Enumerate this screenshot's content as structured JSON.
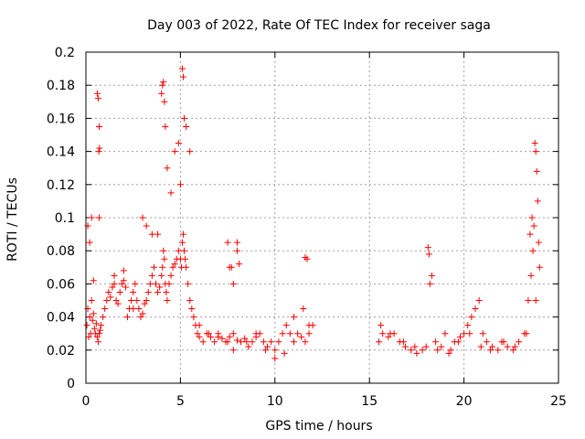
{
  "chart_data": {
    "type": "scatter",
    "title": "Day 003 of 2022, Rate Of TEC Index for receiver saga",
    "xlabel": "GPS time / hours",
    "ylabel": "ROTI / TECUs",
    "xlim": [
      0,
      25
    ],
    "ylim": [
      0,
      0.2
    ],
    "xticks": [
      0,
      5,
      10,
      15,
      20,
      25
    ],
    "xtick_labels": [
      "0",
      "5",
      "10",
      "15",
      "20",
      "25"
    ],
    "yticks": [
      0,
      0.02,
      0.04,
      0.06,
      0.08,
      0.1,
      0.12,
      0.14,
      0.16,
      0.18,
      0.2
    ],
    "ytick_labels": [
      "0",
      "0.02",
      "0.04",
      "0.06",
      "0.08",
      "0.1",
      "0.12",
      "0.14",
      "0.16",
      "0.18",
      "0.2"
    ],
    "grid": true,
    "marker": "+",
    "color": "#ff0000",
    "series": [
      {
        "name": "ROTI",
        "x": [
          0.05,
          0.1,
          0.15,
          0.2,
          0.25,
          0.3,
          0.35,
          0.4,
          0.45,
          0.5,
          0.55,
          0.6,
          0.65,
          0.7,
          0.75,
          0.8,
          0.9,
          1.0,
          1.1,
          1.2,
          1.3,
          1.4,
          1.5,
          1.6,
          1.7,
          1.8,
          1.9,
          2.0,
          2.1,
          2.2,
          2.3,
          2.4,
          2.5,
          2.6,
          2.7,
          2.8,
          2.9,
          3.0,
          3.1,
          3.2,
          3.3,
          3.4,
          3.5,
          3.6,
          3.7,
          3.8,
          3.9,
          4.0,
          4.05,
          4.1,
          4.15,
          4.2,
          4.25,
          4.3,
          4.4,
          4.5,
          4.6,
          4.7,
          4.8,
          4.9,
          5.0,
          5.05,
          5.1,
          5.15,
          5.2,
          5.25,
          5.3,
          5.4,
          5.5,
          5.6,
          5.7,
          5.8,
          5.9,
          6.0,
          6.2,
          6.4,
          6.6,
          6.8,
          7.0,
          7.2,
          7.4,
          7.6,
          7.8,
          8.0,
          8.2,
          8.4,
          8.6,
          8.8,
          9.0,
          9.2,
          9.4,
          9.6,
          9.8,
          10.0,
          10.2,
          10.4,
          10.6,
          10.8,
          11.0,
          11.2,
          11.4,
          11.6,
          11.8,
          12.0,
          0.1,
          0.2,
          0.3,
          0.4,
          0.6,
          0.65,
          0.7,
          0.68,
          0.72,
          0.7,
          1.5,
          2.0,
          2.5,
          3.0,
          3.2,
          3.5,
          3.8,
          4.0,
          4.05,
          4.1,
          4.15,
          4.2,
          4.3,
          4.5,
          4.7,
          4.9,
          5.0,
          5.1,
          5.15,
          5.2,
          5.3,
          5.5,
          6.0,
          6.5,
          7.0,
          7.5,
          7.8,
          8.0,
          8.5,
          9.0,
          9.5,
          10.0,
          10.5,
          11.0,
          11.5,
          11.8,
          15.5,
          15.7,
          16.0,
          16.3,
          16.6,
          16.9,
          17.2,
          17.5,
          17.8,
          18.0,
          18.1,
          18.15,
          18.2,
          18.3,
          18.5,
          18.8,
          19.0,
          19.3,
          19.5,
          19.8,
          20.0,
          20.2,
          20.4,
          20.6,
          20.8,
          21.0,
          21.2,
          21.5,
          21.8,
          22.0,
          22.3,
          22.6,
          22.9,
          23.2,
          23.4,
          23.5,
          23.6,
          23.7,
          23.75,
          23.8,
          23.85,
          23.9,
          23.95,
          24.0,
          15.6,
          16.1,
          16.8,
          17.4,
          18.6,
          19.2,
          19.7,
          20.3,
          20.9,
          21.4,
          22.1,
          22.7,
          23.3,
          23.55,
          23.65,
          23.8,
          7.5,
          7.6,
          7.7,
          7.8,
          8.0,
          8.1,
          11.6,
          11.7
        ],
        "y": [
          0.035,
          0.045,
          0.028,
          0.04,
          0.03,
          0.05,
          0.038,
          0.042,
          0.033,
          0.03,
          0.036,
          0.028,
          0.025,
          0.03,
          0.032,
          0.035,
          0.04,
          0.045,
          0.05,
          0.055,
          0.052,
          0.058,
          0.06,
          0.05,
          0.048,
          0.055,
          0.06,
          0.062,
          0.058,
          0.04,
          0.045,
          0.05,
          0.055,
          0.06,
          0.05,
          0.045,
          0.04,
          0.042,
          0.048,
          0.05,
          0.055,
          0.06,
          0.065,
          0.07,
          0.06,
          0.055,
          0.058,
          0.065,
          0.07,
          0.08,
          0.075,
          0.06,
          0.055,
          0.05,
          0.06,
          0.065,
          0.07,
          0.072,
          0.075,
          0.08,
          0.075,
          0.07,
          0.085,
          0.09,
          0.08,
          0.075,
          0.07,
          0.06,
          0.05,
          0.045,
          0.04,
          0.035,
          0.03,
          0.028,
          0.025,
          0.03,
          0.028,
          0.025,
          0.03,
          0.027,
          0.025,
          0.028,
          0.03,
          0.026,
          0.025,
          0.027,
          0.022,
          0.025,
          0.028,
          0.03,
          0.025,
          0.022,
          0.025,
          0.02,
          0.025,
          0.03,
          0.035,
          0.03,
          0.025,
          0.03,
          0.028,
          0.025,
          0.03,
          0.035,
          0.095,
          0.085,
          0.1,
          0.062,
          0.175,
          0.172,
          0.155,
          0.14,
          0.142,
          0.1,
          0.065,
          0.068,
          0.045,
          0.1,
          0.095,
          0.09,
          0.09,
          0.175,
          0.18,
          0.182,
          0.17,
          0.155,
          0.13,
          0.115,
          0.14,
          0.145,
          0.12,
          0.19,
          0.185,
          0.16,
          0.155,
          0.14,
          0.035,
          0.03,
          0.028,
          0.025,
          0.02,
          0.085,
          0.025,
          0.03,
          0.02,
          0.015,
          0.018,
          0.04,
          0.045,
          0.035,
          0.025,
          0.03,
          0.028,
          0.03,
          0.025,
          0.022,
          0.02,
          0.018,
          0.02,
          0.022,
          0.082,
          0.078,
          0.06,
          0.065,
          0.025,
          0.022,
          0.03,
          0.02,
          0.025,
          0.028,
          0.03,
          0.035,
          0.04,
          0.045,
          0.05,
          0.03,
          0.025,
          0.022,
          0.02,
          0.025,
          0.022,
          0.02,
          0.025,
          0.03,
          0.05,
          0.09,
          0.1,
          0.095,
          0.145,
          0.14,
          0.128,
          0.11,
          0.085,
          0.07,
          0.035,
          0.03,
          0.025,
          0.022,
          0.02,
          0.018,
          0.025,
          0.03,
          0.022,
          0.02,
          0.025,
          0.022,
          0.03,
          0.065,
          0.08,
          0.05,
          0.085,
          0.07,
          0.07,
          0.06,
          0.08,
          0.072,
          0.076,
          0.075
        ]
      }
    ]
  }
}
